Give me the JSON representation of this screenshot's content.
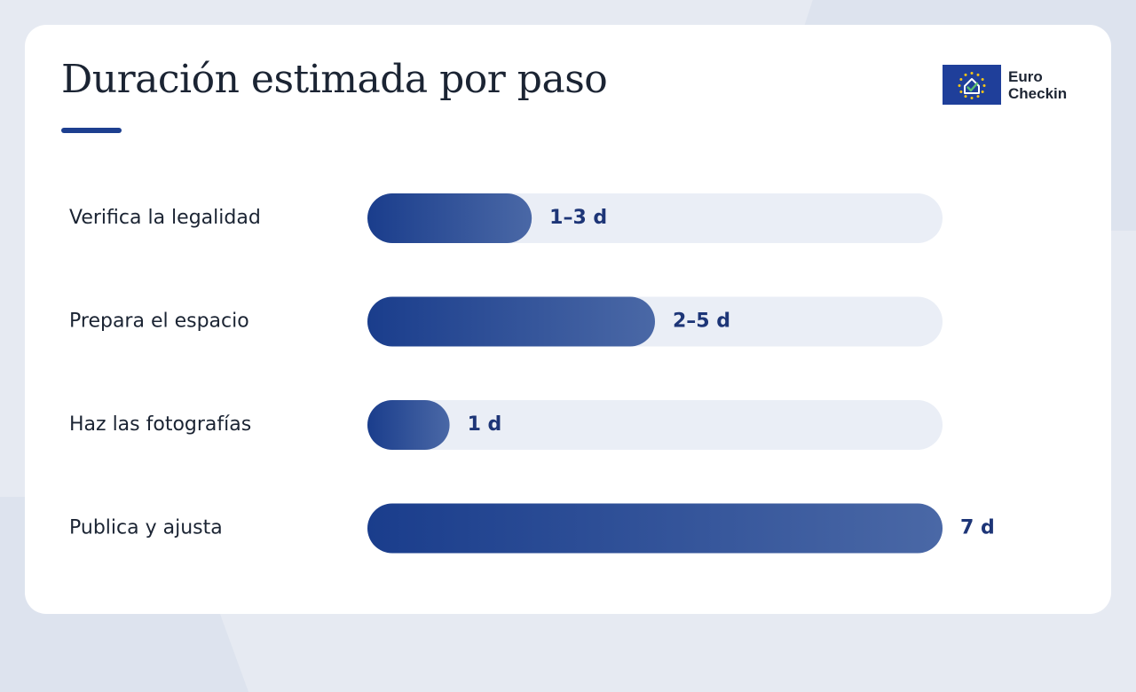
{
  "header": {
    "title": "Duración estimada por paso"
  },
  "brand": {
    "line1": "Euro",
    "line2": "Checkin",
    "icon": "eu-flag-house-check-icon"
  },
  "colors": {
    "bar_start": "#1a3d8c",
    "bar_end": "#4a68a6",
    "track": "#eaeef6",
    "value_text": "#1d3577",
    "accent": "#1d3f8f"
  },
  "chart_data": {
    "type": "bar",
    "orientation": "horizontal",
    "title": "Duración estimada por paso",
    "xlabel": "",
    "ylabel": "",
    "xlim": [
      0,
      7
    ],
    "grid": false,
    "legend": "none",
    "categories": [
      "Verifica la legalidad",
      "Prepara el espacio",
      "Haz las fotografías",
      "Publica y ajusta"
    ],
    "values": [
      2,
      3.5,
      1,
      7
    ],
    "value_labels": [
      "1–3 d",
      "2–5 d",
      "1 d",
      "7 d"
    ]
  }
}
